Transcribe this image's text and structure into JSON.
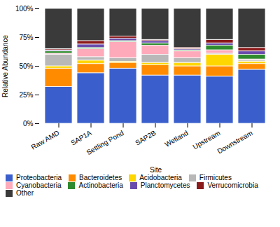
{
  "chart_data": {
    "type": "bar",
    "stacked": true,
    "xlabel": "Site",
    "ylabel": "Relative Abundance",
    "categories": [
      "Raw AMD",
      "SAP1A",
      "Settling Pond",
      "SAP2B",
      "Wetland",
      "Upstream",
      "Downstream"
    ],
    "ylim": [
      0,
      1
    ],
    "yticks": [
      {
        "value": 0,
        "label": "0%"
      },
      {
        "value": 0.25,
        "label": "25%"
      },
      {
        "value": 0.5,
        "label": "50%"
      },
      {
        "value": 0.75,
        "label": "75%"
      },
      {
        "value": 1.0,
        "label": "100%"
      }
    ],
    "grid": false,
    "legend": "bottom",
    "series": [
      {
        "name": "Proteobacteria",
        "color": "#3a5fcd",
        "values": [
          0.32,
          0.44,
          0.48,
          0.42,
          0.42,
          0.41,
          0.47
        ]
      },
      {
        "name": "Bacteroidetes",
        "color": "#ff8c00",
        "values": [
          0.16,
          0.08,
          0.05,
          0.09,
          0.08,
          0.09,
          0.05
        ]
      },
      {
        "name": "Acidobacteria",
        "color": "#ffd700",
        "values": [
          0.02,
          0.03,
          0.01,
          0.02,
          0.03,
          0.1,
          0.02
        ]
      },
      {
        "name": "Firmicutes",
        "color": "#b8b8b8",
        "values": [
          0.1,
          0.03,
          0.03,
          0.07,
          0.04,
          0.01,
          0.01
        ]
      },
      {
        "name": "Cyanobacteria",
        "color": "#ffaabb",
        "values": [
          0.01,
          0.07,
          0.14,
          0.08,
          0.06,
          0.03,
          0.01
        ]
      },
      {
        "name": "Actinobacteria",
        "color": "#2e8b2e",
        "values": [
          0.02,
          0.01,
          0.01,
          0.02,
          0.01,
          0.04,
          0.04
        ]
      },
      {
        "name": "Planctomycetes",
        "color": "#6a4cad",
        "values": [
          0.01,
          0.03,
          0.02,
          0.02,
          0.01,
          0.02,
          0.03
        ]
      },
      {
        "name": "Verrucomicrobia",
        "color": "#8b1a1a",
        "values": [
          0.01,
          0.03,
          0.02,
          0.01,
          0.01,
          0.03,
          0.03
        ]
      },
      {
        "name": "Other",
        "color": "#3a3a3a",
        "values": [
          0.35,
          0.28,
          0.24,
          0.27,
          0.34,
          0.27,
          0.34
        ]
      }
    ]
  }
}
